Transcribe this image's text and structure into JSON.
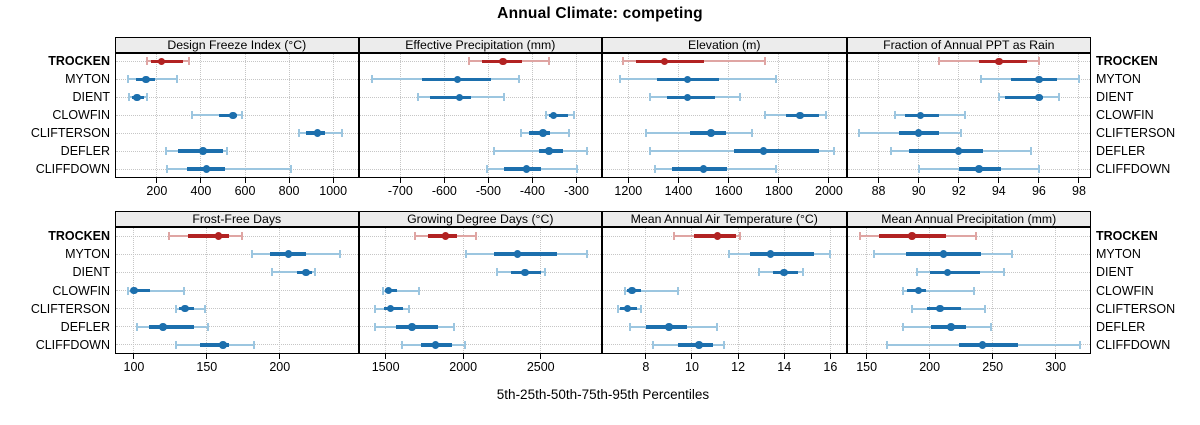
{
  "title": "Annual Climate: competing",
  "xlabel": "5th-25th-50th-75th-95th Percentiles",
  "chart_data": {
    "type": "percentile-interval-dotplot",
    "layout": {
      "rows": 2,
      "cols": 4,
      "grid": "dotted",
      "legend": "none"
    },
    "percentile_labels": [
      "5th",
      "25th",
      "50th",
      "75th",
      "95th"
    ],
    "sites": [
      "TROCKEN",
      "MYTON",
      "DIENT",
      "CLOWFIN",
      "CLIFTERSON",
      "DEFLER",
      "CLIFFDOWN"
    ],
    "highlight_site": "TROCKEN",
    "colors": {
      "highlight": "#b22222",
      "highlight_light": "#dfa5a3",
      "normal": "#1c6fad",
      "normal_light": "#9cc6e0"
    },
    "panels": [
      {
        "title": "Design Freeze Index (°C)",
        "row": 0,
        "col": 0,
        "xlim": [
          10,
          1115
        ],
        "ticks": [
          200,
          400,
          600,
          800,
          1000
        ],
        "values": [
          [
            155,
            172,
            220,
            320,
            345
          ],
          [
            70,
            105,
            150,
            190,
            290
          ],
          [
            75,
            85,
            110,
            140,
            155
          ],
          [
            360,
            480,
            545,
            565,
            585
          ],
          [
            845,
            875,
            930,
            965,
            1040
          ],
          [
            240,
            295,
            410,
            500,
            520
          ],
          [
            245,
            335,
            425,
            510,
            810
          ]
        ]
      },
      {
        "title": "Effective Precipitation (mm)",
        "row": 0,
        "col": 1,
        "xlim": [
          -795,
          -242
        ],
        "ticks": [
          -700,
          -600,
          -500,
          -400,
          -300
        ],
        "values": [
          [
            -545,
            -515,
            -467,
            -424,
            -363
          ],
          [
            -765,
            -650,
            -570,
            -495,
            -430
          ],
          [
            -660,
            -633,
            -566,
            -540,
            -464
          ],
          [
            -370,
            -363,
            -352,
            -320,
            -306
          ],
          [
            -427,
            -407,
            -376,
            -360,
            -318
          ],
          [
            -488,
            -386,
            -362,
            -331,
            -276
          ],
          [
            -504,
            -464,
            -414,
            -381,
            -298
          ]
        ]
      },
      {
        "title": "Elevation (m)",
        "row": 0,
        "col": 2,
        "xlim": [
          1095,
          2070
        ],
        "ticks": [
          1200,
          1400,
          1600,
          1800,
          2000
        ],
        "values": [
          [
            1180,
            1230,
            1345,
            1500,
            1745
          ],
          [
            1165,
            1315,
            1435,
            1560,
            1790
          ],
          [
            1285,
            1355,
            1435,
            1545,
            1645
          ],
          [
            1745,
            1830,
            1885,
            1960,
            1990
          ],
          [
            1270,
            1445,
            1530,
            1590,
            1695
          ],
          [
            1285,
            1620,
            1740,
            1960,
            2020
          ],
          [
            1305,
            1375,
            1500,
            1595,
            1790
          ]
        ]
      },
      {
        "title": "Fraction of Annual PPT as Rain",
        "row": 0,
        "col": 3,
        "xlim": [
          86.4,
          98.6
        ],
        "ticks": [
          88,
          90,
          92,
          94,
          96,
          98
        ],
        "values": [
          [
            91,
            93,
            94,
            95.4,
            96
          ],
          [
            93.1,
            94.6,
            96,
            96.9,
            98
          ],
          [
            94,
            94.3,
            96,
            96.2,
            97
          ],
          [
            88.8,
            89.3,
            90.1,
            91,
            92.3
          ],
          [
            87,
            89,
            90,
            91,
            92.1
          ],
          [
            88.6,
            89.5,
            92,
            93.2,
            95.6
          ],
          [
            90,
            92,
            93,
            94.1,
            96
          ]
        ]
      },
      {
        "title": "Frost-Free Days",
        "row": 1,
        "col": 0,
        "xlim": [
          87,
          254
        ],
        "ticks": [
          100,
          150,
          200
        ],
        "values": [
          [
            124,
            137,
            158,
            165,
            174
          ],
          [
            181,
            193,
            206,
            218,
            241
          ],
          [
            195,
            212,
            218,
            222,
            224
          ],
          [
            96,
            98,
            100,
            111,
            134
          ],
          [
            129,
            131,
            135,
            141,
            149
          ],
          [
            102,
            110,
            120,
            141,
            151
          ],
          [
            129,
            145,
            161,
            165,
            182
          ]
        ]
      },
      {
        "title": "Growing Degree Days (°C)",
        "row": 1,
        "col": 1,
        "xlim": [
          1325,
          2895
        ],
        "ticks": [
          1500,
          2000,
          2500
        ],
        "values": [
          [
            1690,
            1770,
            1885,
            1960,
            2085
          ],
          [
            2020,
            2200,
            2350,
            2605,
            2800
          ],
          [
            2220,
            2310,
            2400,
            2500,
            2530
          ],
          [
            1485,
            1495,
            1520,
            1575,
            1715
          ],
          [
            1430,
            1490,
            1530,
            1615,
            1650
          ],
          [
            1430,
            1565,
            1670,
            1840,
            1940
          ],
          [
            1605,
            1725,
            1820,
            1925,
            2010
          ]
        ]
      },
      {
        "title": "Mean Annual Air Temperature (°C)",
        "row": 1,
        "col": 2,
        "xlim": [
          6.1,
          16.7
        ],
        "ticks": [
          8,
          10,
          12,
          14,
          16
        ],
        "values": [
          [
            9.2,
            10.1,
            11.1,
            11.9,
            12.1
          ],
          [
            11.6,
            12.5,
            13.4,
            15.3,
            16
          ],
          [
            12.9,
            13.5,
            14,
            14.6,
            14.8
          ],
          [
            7.1,
            7.2,
            7.4,
            7.8,
            9.4
          ],
          [
            6.8,
            6.9,
            7.2,
            7.6,
            7.8
          ],
          [
            7.3,
            8,
            9,
            9.8,
            11.1
          ],
          [
            8.3,
            9.4,
            10.3,
            10.9,
            11.4
          ]
        ]
      },
      {
        "title": "Mean Annual Precipitation (mm)",
        "row": 1,
        "col": 3,
        "xlim": [
          134,
          328
        ],
        "ticks": [
          150,
          200,
          250,
          300
        ],
        "values": [
          [
            145,
            160,
            186,
            213,
            237
          ],
          [
            156,
            181,
            211,
            241,
            265
          ],
          [
            190,
            200,
            214,
            240,
            259
          ],
          [
            179,
            182,
            191,
            197,
            235
          ],
          [
            186,
            198,
            208,
            225,
            244
          ],
          [
            179,
            201,
            217,
            229,
            249
          ],
          [
            166,
            223,
            242,
            270,
            319
          ]
        ]
      }
    ]
  }
}
